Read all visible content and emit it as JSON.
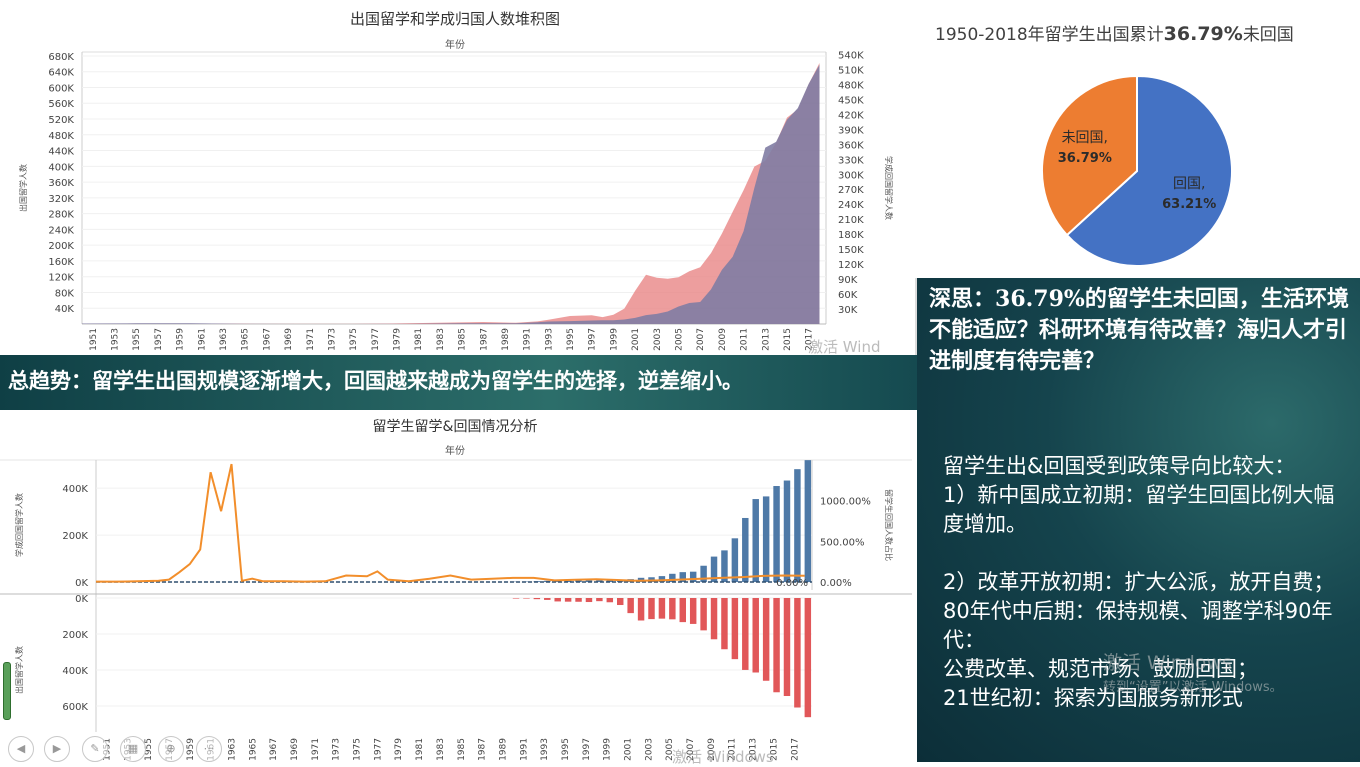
{
  "chart_data": [
    {
      "type": "area",
      "title": "出国留学和学成归国人数堆积图",
      "subtitle": "年份",
      "ylabel": "出国留学人数",
      "ylabel_right": "学成回国留学人数",
      "ylim": [
        0,
        690000
      ],
      "ylim_right": [
        0,
        545000
      ],
      "y_ticks": [
        "40K",
        "80K",
        "120K",
        "160K",
        "200K",
        "240K",
        "280K",
        "320K",
        "360K",
        "400K",
        "440K",
        "480K",
        "520K",
        "560K",
        "600K",
        "640K",
        "680K"
      ],
      "y_ticks_right": [
        "30K",
        "60K",
        "90K",
        "120K",
        "150K",
        "180K",
        "210K",
        "240K",
        "270K",
        "300K",
        "330K",
        "360K",
        "390K",
        "420K",
        "450K",
        "480K",
        "510K",
        "540K"
      ],
      "x_tick_labels": [
        "1951",
        "1953",
        "1955",
        "1957",
        "1959",
        "1961",
        "1963",
        "1965",
        "1967",
        "1969",
        "1971",
        "1973",
        "1975",
        "1977",
        "1979",
        "1981",
        "1983",
        "1985",
        "1987",
        "1989",
        "1991",
        "1993",
        "1995",
        "1997",
        "1999",
        "2001",
        "2003",
        "2005",
        "2007",
        "2009",
        "2011",
        "2013",
        "2015",
        "2017"
      ],
      "x": [
        1950,
        1955,
        1960,
        1965,
        1970,
        1975,
        1978,
        1980,
        1985,
        1987,
        1990,
        1992,
        1993,
        1995,
        1997,
        1998,
        1999,
        2000,
        2001,
        2002,
        2003,
        2004,
        2005,
        2006,
        2007,
        2008,
        2009,
        2010,
        2011,
        2012,
        2013,
        2014,
        2015,
        2016,
        2017,
        2018
      ],
      "series": [
        {
          "name": "出国留学人数",
          "color": "#e88686",
          "values": [
            200,
            500,
            800,
            600,
            200,
            200,
            900,
            2000,
            4000,
            5000,
            3000,
            6500,
            10700,
            20400,
            22400,
            17600,
            23700,
            39000,
            84000,
            125000,
            117300,
            114700,
            118500,
            134000,
            144000,
            179800,
            229300,
            284700,
            339700,
            399600,
            413900,
            459800,
            523700,
            544500,
            608400,
            662100
          ]
        },
        {
          "name": "学成回国留学人数",
          "color": "#7f7ca3",
          "values": [
            1000,
            1500,
            1500,
            200,
            50,
            100,
            250,
            160,
            1600,
            1600,
            1600,
            3600,
            5100,
            5800,
            7100,
            7400,
            7700,
            9100,
            12200,
            17900,
            20200,
            25100,
            35000,
            42000,
            44000,
            69300,
            108300,
            134800,
            186200,
            272900,
            353500,
            364800,
            409100,
            432500,
            480900,
            519400
          ]
        }
      ]
    },
    {
      "type": "bar",
      "title": "留学生留学&回国情况分析",
      "subtitle": "年份",
      "ylabel_top": "学成回国留学人数",
      "ylabel_bottom": "出国留学人数",
      "ylabel_right": "留学生回国人数占比",
      "ylim": [
        0,
        520000
      ],
      "y_ticks_top": [
        "0K",
        "200K",
        "400K"
      ],
      "y_ticks_bottom": [
        "0K",
        "200K",
        "400K",
        "600K"
      ],
      "y_ticks_right": [
        "0.00%",
        "500.00%",
        "1000.00%"
      ],
      "last_ratio_label": "0.00%",
      "x_tick_labels": [
        "1951",
        "1953",
        "1955",
        "1957",
        "1959",
        "1961",
        "1963",
        "1965",
        "1967",
        "1969",
        "1971",
        "1973",
        "1975",
        "1977",
        "1979",
        "1981",
        "1983",
        "1985",
        "1987",
        "1989",
        "1991",
        "1993",
        "1995",
        "1997",
        "1999",
        "2001",
        "2003",
        "2005",
        "2007",
        "2009",
        "2011",
        "2013",
        "2015",
        "2017"
      ],
      "bar_years": [
        1990,
        1991,
        1992,
        1993,
        1994,
        1995,
        1996,
        1997,
        1998,
        1999,
        2000,
        2001,
        2002,
        2003,
        2004,
        2005,
        2006,
        2007,
        2008,
        2009,
        2010,
        2011,
        2012,
        2013,
        2014,
        2015,
        2016,
        2017,
        2018
      ],
      "returned": [
        1600,
        2100,
        3600,
        5100,
        4200,
        5800,
        6600,
        7100,
        7400,
        7700,
        9100,
        12200,
        17900,
        20200,
        25100,
        35000,
        42000,
        44000,
        69300,
        108300,
        134800,
        186200,
        272900,
        353500,
        364800,
        409100,
        432500,
        480900,
        519400
      ],
      "departed": [
        3000,
        2900,
        6500,
        10700,
        19100,
        20400,
        20900,
        22400,
        17600,
        23700,
        39000,
        84000,
        125000,
        117300,
        114700,
        118500,
        134000,
        144000,
        179800,
        229300,
        284700,
        339700,
        399600,
        413900,
        459800,
        523700,
        544500,
        608400,
        662100
      ],
      "ratio_years": [
        1950,
        1952,
        1954,
        1956,
        1957,
        1958,
        1959,
        1960,
        1961,
        1962,
        1963,
        1964,
        1965,
        1966,
        1968,
        1970,
        1972,
        1974,
        1976,
        1977,
        1978,
        1980,
        1982,
        1984,
        1986,
        1988,
        1990,
        1992,
        1994,
        1996,
        1998,
        2000,
        2002,
        2004,
        2006,
        2008,
        2010,
        2012,
        2014,
        2016,
        2018
      ],
      "ratio_pct": [
        5,
        5,
        8,
        15,
        30,
        120,
        220,
        400,
        1350,
        870,
        1450,
        15,
        40,
        10,
        8,
        5,
        8,
        80,
        70,
        130,
        30,
        10,
        40,
        80,
        30,
        40,
        50,
        50,
        20,
        28,
        35,
        25,
        15,
        20,
        30,
        40,
        50,
        60,
        75,
        80,
        78
      ],
      "colors": {
        "returned": "#4e79a7",
        "departed": "#e15759",
        "ratio": "#f28e2b"
      }
    },
    {
      "type": "pie",
      "title_prefix": "1950-2018年留学生出国累计",
      "title_value": "36.79%",
      "title_suffix": "未回国",
      "labels": [
        "回国",
        "未回国"
      ],
      "display": [
        "回国,",
        "未回国,"
      ],
      "values_pct": [
        "63.21%",
        "36.79%"
      ],
      "values": [
        63.21,
        36.79
      ],
      "colors": [
        "#4472c4",
        "#ed7d31"
      ]
    }
  ],
  "banner": {
    "text": "总趋势：留学生出国规模逐渐增大，回国越来越成为留学生的选择，逆差缩小。"
  },
  "right_panel": {
    "think_prefix": "深思：",
    "think_value": "36.79%",
    "think_rest": "的留学生未回国，生活环境不能适应？科研环境有待改善？海归人才引进制度有待完善？",
    "policy_lines": [
      "留学生出&回国受到政策导向比较大：",
      "1）新中国成立初期：留学生回国比例大幅度增加。",
      "",
      "2）改革开放初期：扩大公派，放开自费；",
      "80年代中后期：保持规模、调整学科90年代：",
      "公费改革、规范市场、鼓励回国；",
      "21世纪初：探索为国服务新形式"
    ]
  },
  "watermarks": {
    "line1": "激活 Windows",
    "line2": "转到“设置”以激活 Windows。",
    "chart1": "激活 Wind",
    "chart2": "激活 Windows"
  },
  "controls": {
    "icons": [
      "arrow-left-icon",
      "arrow-right-icon",
      "pen-icon",
      "grid-icon",
      "zoom-icon",
      "more-icon"
    ],
    "glyphs": [
      "◀",
      "▶",
      "✎",
      "▦",
      "⊕",
      "⋯"
    ]
  }
}
